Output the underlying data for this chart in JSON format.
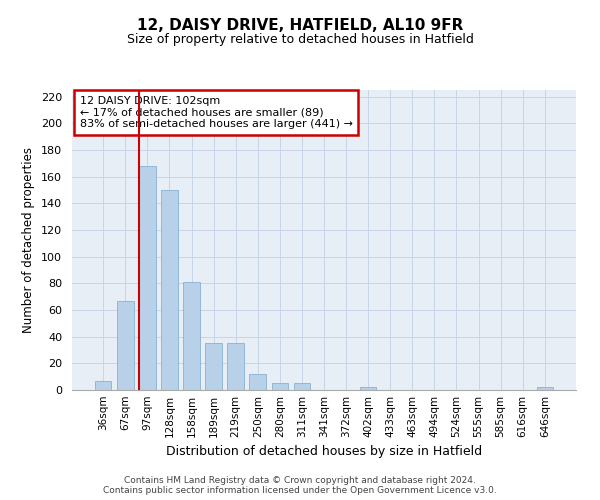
{
  "title1": "12, DAISY DRIVE, HATFIELD, AL10 9FR",
  "title2": "Size of property relative to detached houses in Hatfield",
  "xlabel": "Distribution of detached houses by size in Hatfield",
  "ylabel": "Number of detached properties",
  "categories": [
    "36sqm",
    "67sqm",
    "97sqm",
    "128sqm",
    "158sqm",
    "189sqm",
    "219sqm",
    "250sqm",
    "280sqm",
    "311sqm",
    "341sqm",
    "372sqm",
    "402sqm",
    "433sqm",
    "463sqm",
    "494sqm",
    "524sqm",
    "555sqm",
    "585sqm",
    "616sqm",
    "646sqm"
  ],
  "values": [
    7,
    67,
    168,
    150,
    81,
    35,
    35,
    12,
    5,
    5,
    0,
    0,
    2,
    0,
    0,
    0,
    0,
    0,
    0,
    0,
    2
  ],
  "bar_color": "#b8d0e8",
  "bar_edgecolor": "#7aaad0",
  "bar_linewidth": 0.5,
  "ylim": [
    0,
    225
  ],
  "yticks": [
    0,
    20,
    40,
    60,
    80,
    100,
    120,
    140,
    160,
    180,
    200,
    220
  ],
  "vline_x_index": 2,
  "vline_color": "#cc0000",
  "annotation_text": "12 DAISY DRIVE: 102sqm\n← 17% of detached houses are smaller (89)\n83% of semi-detached houses are larger (441) →",
  "annotation_box_color": "#cc0000",
  "grid_color": "#c8d4e8",
  "background_color": "#e8eef6",
  "footer1": "Contains HM Land Registry data © Crown copyright and database right 2024.",
  "footer2": "Contains public sector information licensed under the Open Government Licence v3.0."
}
